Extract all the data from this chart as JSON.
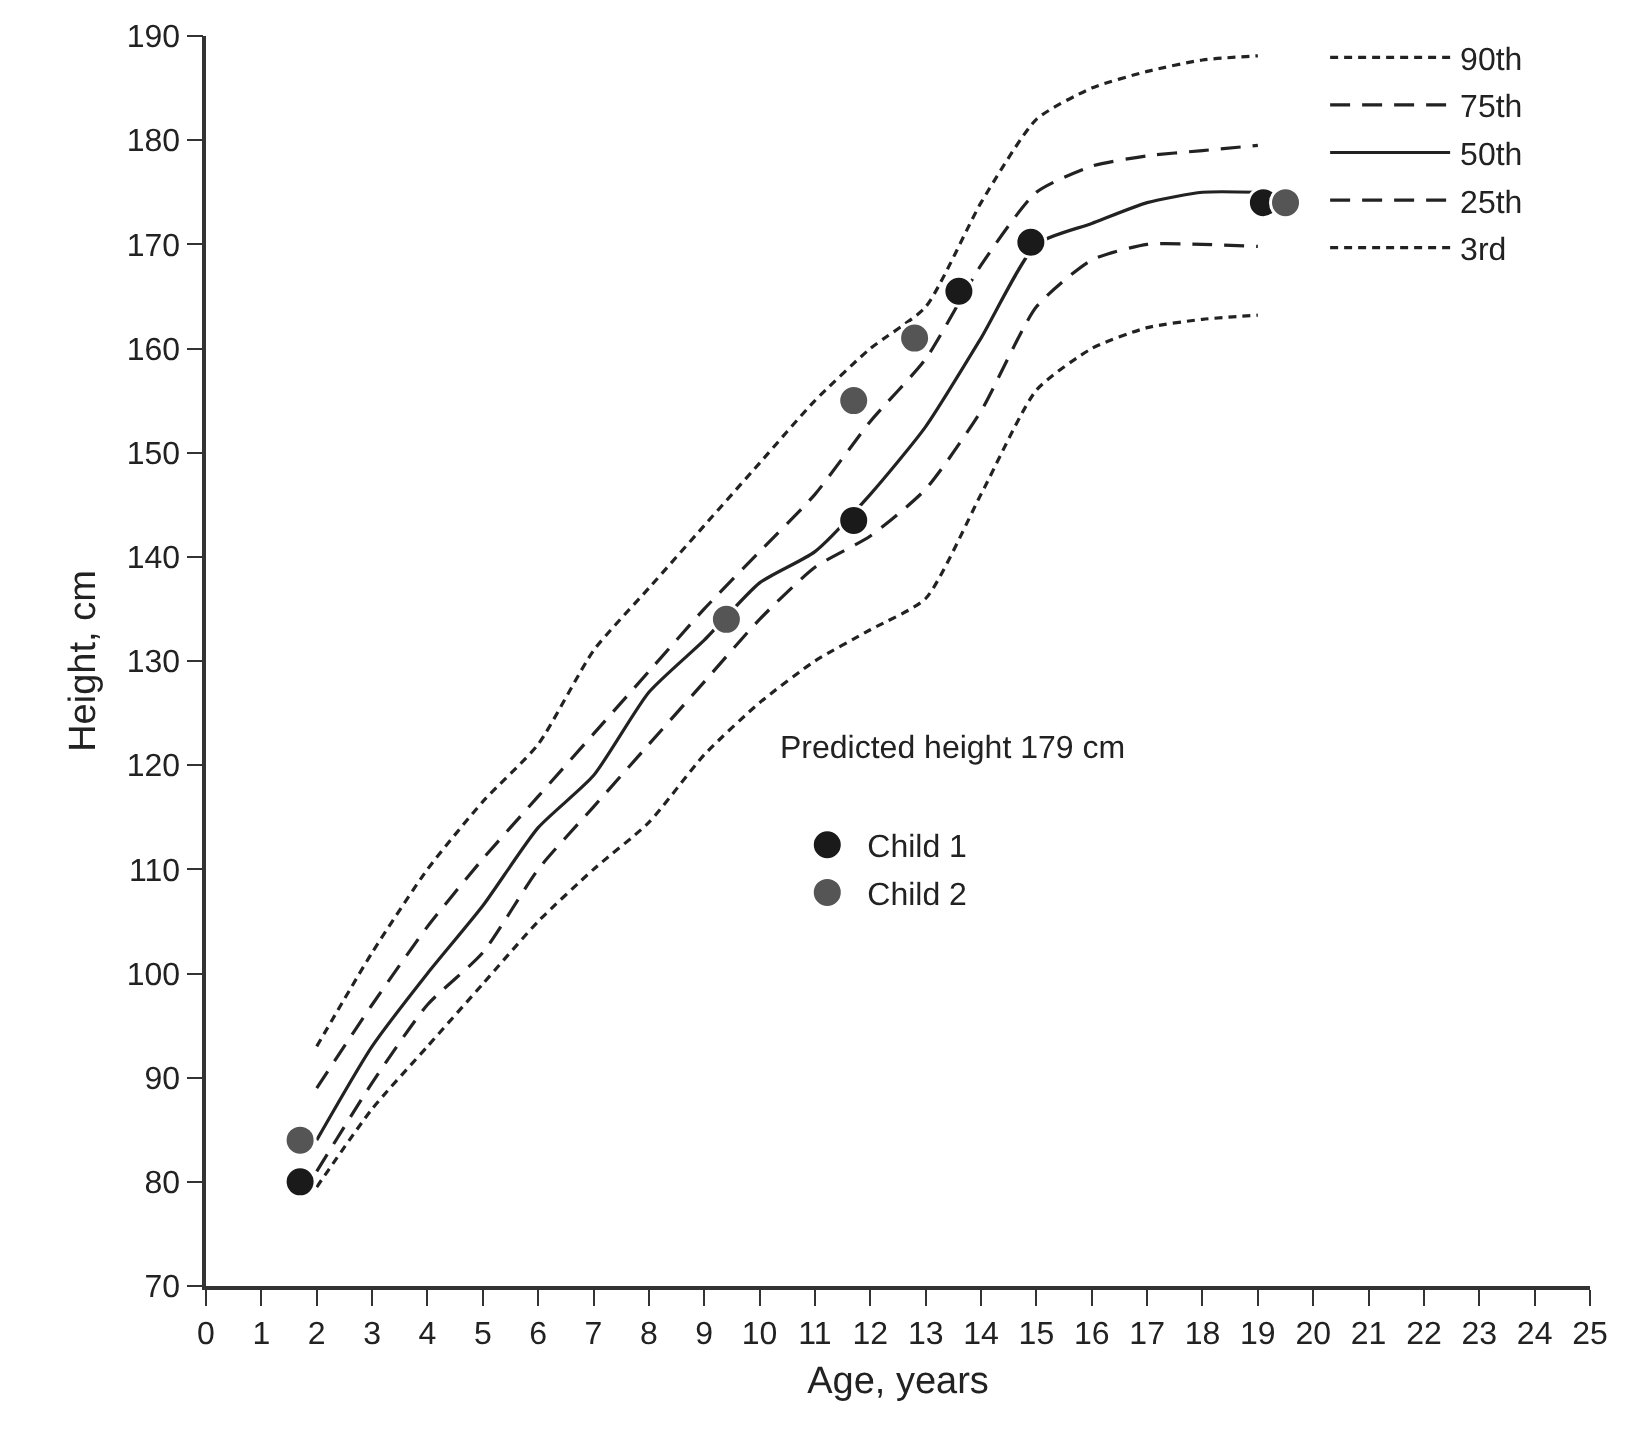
{
  "chart_data": {
    "type": "line",
    "xlabel": "Age, years",
    "ylabel": "Height, cm",
    "x": [
      2,
      3,
      4,
      5,
      6,
      7,
      8,
      9,
      10,
      11,
      12,
      13,
      14,
      15,
      16,
      17,
      18,
      19
    ],
    "series": [
      {
        "name": "90th",
        "color": "#222222",
        "line_style": "dotted",
        "values": [
          93,
          102,
          110,
          116.5,
          122,
          131,
          137,
          143,
          149,
          155,
          160,
          164,
          174,
          182,
          185,
          186.6,
          187.7,
          188.1
        ]
      },
      {
        "name": "75th",
        "color": "#222222",
        "line_style": "dashed",
        "values": [
          89,
          97,
          104.5,
          111,
          117,
          123,
          129,
          135,
          140.5,
          146,
          153,
          159,
          168,
          175,
          177.5,
          178.5,
          179,
          179.5
        ]
      },
      {
        "name": "50th",
        "color": "#222222",
        "line_style": "solid",
        "values": [
          84,
          93,
          100,
          106.5,
          114,
          119,
          127,
          132,
          137.5,
          140.5,
          146,
          152.5,
          161,
          170,
          172,
          174,
          175,
          175
        ]
      },
      {
        "name": "25th",
        "color": "#222222",
        "line_style": "dashed",
        "values": [
          81,
          89.5,
          97,
          102,
          110,
          116,
          122,
          128,
          134,
          139,
          142,
          146.5,
          154,
          164,
          168.5,
          170,
          170,
          169.8
        ]
      },
      {
        "name": "3rd",
        "color": "#222222",
        "line_style": "dotted",
        "values": [
          79.5,
          87,
          93,
          99,
          105,
          110,
          114.5,
          121,
          126,
          130,
          133,
          136,
          146,
          156,
          160,
          162,
          162.8,
          163.2
        ]
      },
      {
        "name": "Child 1",
        "type": "scatter",
        "marker": "circle",
        "color": "#1a1a1a",
        "x": [
          1.7,
          11.7,
          13.6,
          14.9,
          19.1
        ],
        "values": [
          80,
          143.5,
          165.5,
          170.2,
          174
        ]
      },
      {
        "name": "Child 2",
        "type": "scatter",
        "marker": "circle",
        "color": "#555555",
        "x": [
          1.7,
          9.4,
          11.7,
          12.8,
          19.5
        ],
        "values": [
          84,
          134,
          155,
          161,
          174
        ]
      }
    ],
    "xlim": [
      0,
      25
    ],
    "xticks": [
      0,
      1,
      2,
      3,
      4,
      5,
      6,
      7,
      8,
      9,
      10,
      11,
      12,
      13,
      14,
      15,
      16,
      17,
      18,
      19,
      20,
      21,
      22,
      23,
      24,
      25
    ],
    "ylim": [
      70,
      190
    ],
    "yticks": [
      70,
      80,
      90,
      100,
      110,
      120,
      130,
      140,
      150,
      160,
      170,
      180,
      190
    ],
    "grid": false,
    "legend": "top right",
    "annotations": [
      "Predicted height 179 cm"
    ]
  }
}
